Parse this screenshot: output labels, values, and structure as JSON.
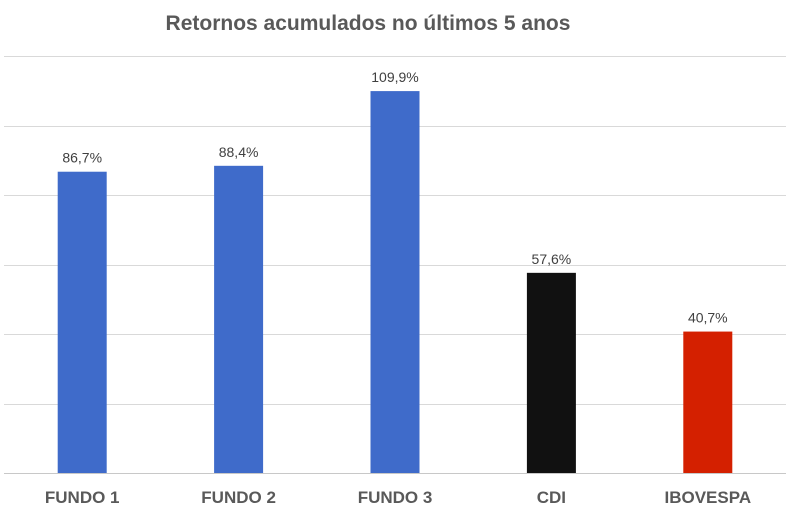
{
  "chart_data": {
    "type": "bar",
    "title": "Retornos acumulados no últimos 5 anos",
    "categories": [
      "FUNDO 1",
      "FUNDO 2",
      "FUNDO 3",
      "CDI",
      "IBOVESPA"
    ],
    "values": [
      86.7,
      88.4,
      109.9,
      57.6,
      40.7
    ],
    "data_labels": [
      "86,7%",
      "88,4%",
      "109,9%",
      "57,6%",
      "40,7%"
    ],
    "colors": [
      "#3f6bca",
      "#3f6bca",
      "#3f6bca",
      "#111111",
      "#d42000"
    ],
    "ylim": [
      0,
      120
    ],
    "grid": true,
    "legend": "none"
  }
}
